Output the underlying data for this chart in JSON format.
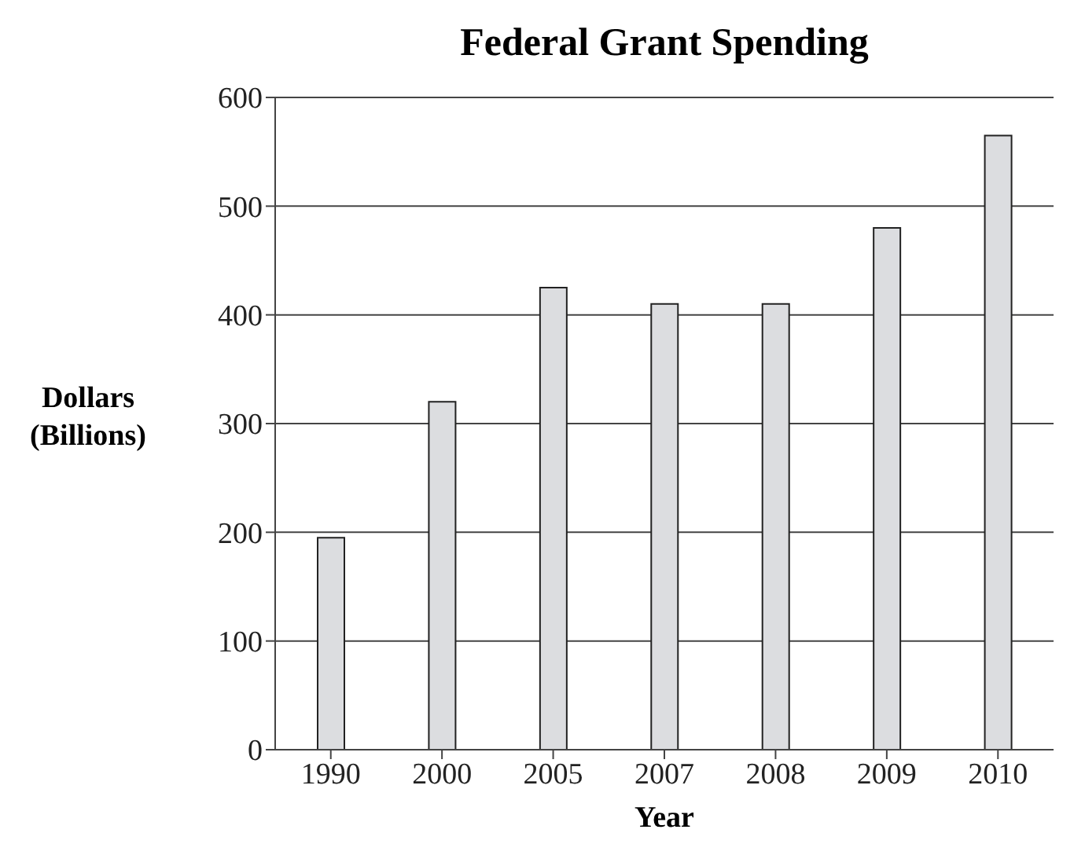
{
  "chart_data": {
    "type": "bar",
    "title": "Federal Grant Spending",
    "xlabel": "Year",
    "ylabel": "Dollars (Billions)",
    "categories": [
      "1990",
      "2000",
      "2005",
      "2007",
      "2008",
      "2009",
      "2010"
    ],
    "values": [
      195,
      320,
      425,
      410,
      410,
      480,
      565
    ],
    "color": "#dcdde0",
    "ylim": [
      0,
      600
    ],
    "yticks": [
      0,
      100,
      200,
      300,
      400,
      500,
      600
    ],
    "grid": "y"
  }
}
